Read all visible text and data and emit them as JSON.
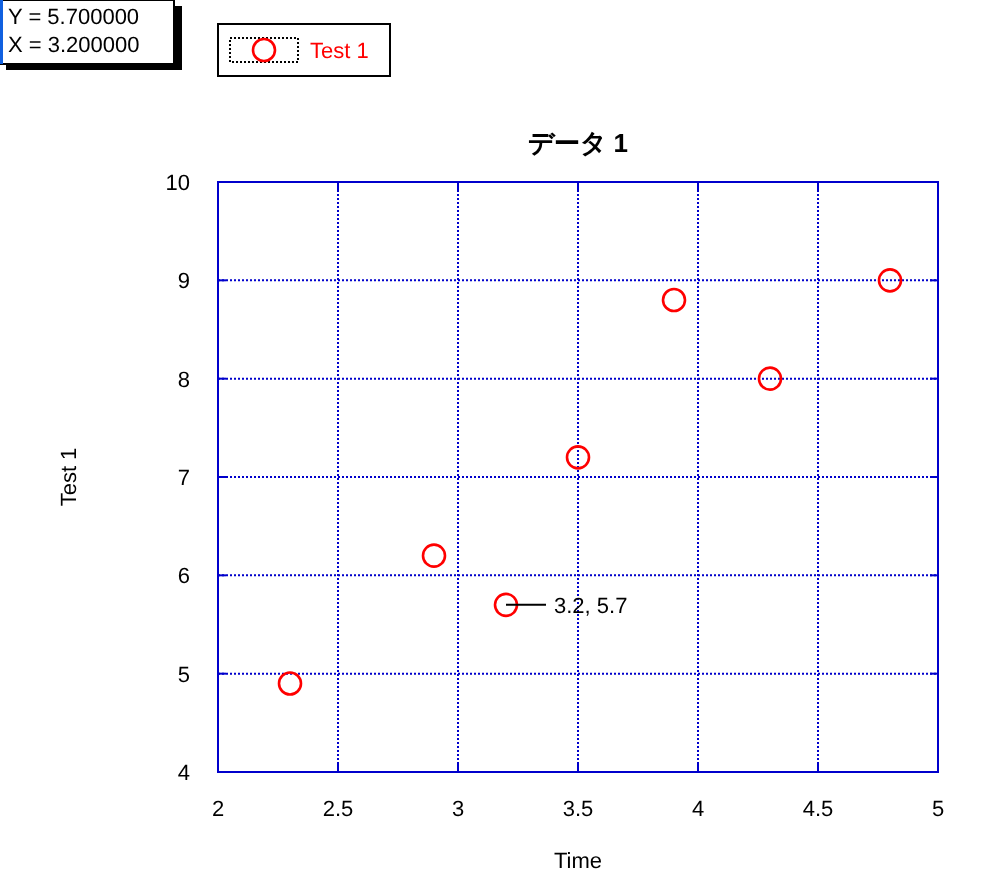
{
  "chart_data": {
    "type": "scatter",
    "title": "データ 1",
    "xlabel": "Time",
    "ylabel": "Test 1",
    "x": [
      2.3,
      2.9,
      3.2,
      3.5,
      3.9,
      4.3,
      4.8
    ],
    "series": [
      {
        "name": "Test 1",
        "color": "#ff0000",
        "values": [
          4.9,
          6.2,
          5.7,
          7.2,
          8.8,
          8.0,
          9.0
        ]
      }
    ],
    "xlim": [
      2,
      5
    ],
    "ylim": [
      4,
      10
    ],
    "xticks": [
      2,
      2.5,
      3,
      3.5,
      4,
      4.5,
      5
    ],
    "yticks": [
      4,
      5,
      6,
      7,
      8,
      9,
      10
    ],
    "grid": true,
    "legend": "top left",
    "marker": "circle",
    "annotations": [
      "Y = 5.700000",
      "X = 3.200000",
      {
        "text": "3.2, 5.7",
        "x": 3.2,
        "y": 5.7
      }
    ]
  }
}
